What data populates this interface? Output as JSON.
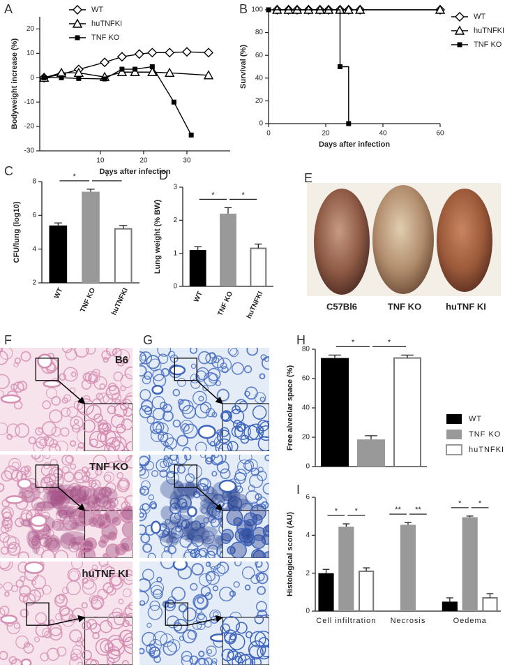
{
  "chart_data": [
    {
      "panel": "A",
      "type": "line",
      "xlabel": "Days after infection",
      "ylabel": "Bodyweight increase (%)",
      "xlim": [
        -4,
        40
      ],
      "xticks": [
        10,
        20,
        30
      ],
      "ylim": [
        -30,
        25
      ],
      "yticks": [
        -30,
        -20,
        -10,
        0,
        10,
        20
      ],
      "legend": "upper left",
      "series": [
        {
          "name": "WT",
          "marker": "diamond",
          "color": "#000000",
          "x": [
            -3,
            1,
            5,
            11,
            15,
            19,
            22,
            26,
            30,
            35
          ],
          "values": [
            0,
            1.4,
            3.4,
            6.3,
            8.6,
            9.7,
            10.3,
            10.3,
            10.6,
            10.3
          ]
        },
        {
          "name": "huTNFKI",
          "marker": "triangle",
          "color": "#000000",
          "x": [
            -3,
            1,
            5,
            11,
            15,
            18,
            22,
            26,
            35
          ],
          "values": [
            0,
            2,
            2,
            0.3,
            2.3,
            2.3,
            2.3,
            2,
            1
          ]
        },
        {
          "name": "TNF KO",
          "marker": "square",
          "color": "#000000",
          "x": [
            -3,
            1,
            5,
            11,
            15,
            18,
            22,
            27,
            31
          ],
          "values": [
            0,
            0,
            -0.3,
            -0.5,
            3.5,
            3.5,
            4.5,
            -10,
            -23.5
          ]
        }
      ]
    },
    {
      "panel": "B",
      "type": "line",
      "step": true,
      "xlabel": "Days after infection",
      "ylabel": "Survival (%)",
      "xlim": [
        0,
        60
      ],
      "xticks": [
        0,
        20,
        40,
        60
      ],
      "ylim": [
        0,
        100
      ],
      "yticks": [
        0,
        20,
        40,
        60,
        80,
        100
      ],
      "legend": "right",
      "series": [
        {
          "name": "WT",
          "marker": "diamond",
          "color": "#000000",
          "x": [
            3,
            7,
            10,
            14,
            18,
            21,
            25,
            28,
            32,
            60
          ],
          "values": [
            100,
            100,
            100,
            100,
            100,
            100,
            100,
            100,
            100,
            100
          ]
        },
        {
          "name": "huTNFKI",
          "marker": "triangle",
          "color": "#000000",
          "x": [
            3,
            7,
            10,
            14,
            18,
            21,
            25,
            28,
            32,
            60
          ],
          "values": [
            100,
            100,
            100,
            100,
            100,
            100,
            100,
            100,
            100,
            100
          ]
        },
        {
          "name": "TNF KO",
          "marker": "square",
          "color": "#000000",
          "x": [
            0,
            25,
            28
          ],
          "values": [
            100,
            50,
            0
          ]
        }
      ]
    },
    {
      "panel": "C",
      "type": "bar",
      "ylabel": "CFU/lung (log10)",
      "ylim": [
        2,
        8
      ],
      "yticks": [
        2,
        4,
        6,
        8
      ],
      "xtick_rotation": -65,
      "categories": [
        "WT",
        "TNF KO",
        "huTNFKI"
      ],
      "values": [
        5.4,
        7.4,
        5.2
      ],
      "errors": [
        0.15,
        0.15,
        0.2
      ],
      "colors": [
        "#000000",
        "#999999",
        "#ffffff"
      ],
      "annotations": [
        "*",
        "*"
      ]
    },
    {
      "panel": "D",
      "type": "bar",
      "ylabel": "Lung weight (% BW)",
      "ylim": [
        0,
        3
      ],
      "yticks": [
        0,
        1,
        2,
        3
      ],
      "xtick_rotation": -65,
      "categories": [
        "WT",
        "TNF KO",
        "huTNFKI"
      ],
      "values": [
        1.1,
        2.2,
        1.15
      ],
      "errors": [
        0.1,
        0.18,
        0.13
      ],
      "colors": [
        "#000000",
        "#999999",
        "#ffffff"
      ],
      "annotations": [
        "*",
        "*"
      ]
    },
    {
      "panel": "H",
      "type": "bar",
      "ylabel": "Free alveolar space (%)",
      "ylim": [
        0,
        80
      ],
      "yticks": [
        0,
        20,
        40,
        60,
        80
      ],
      "legend": "right",
      "categories": [
        null
      ],
      "series": [
        {
          "name": "WT",
          "color": "#000000",
          "values": [
            74
          ],
          "errors": [
            2
          ]
        },
        {
          "name": "TNF KO",
          "color": "#999999",
          "values": [
            18.5
          ],
          "errors": [
            2.5
          ]
        },
        {
          "name": "huTNFKI",
          "color": "#ffffff",
          "values": [
            74
          ],
          "errors": [
            2
          ]
        }
      ],
      "annotations": [
        [
          "*",
          "*"
        ]
      ]
    },
    {
      "panel": "I",
      "type": "bar",
      "ylabel": "Histological score (AU)",
      "ylim": [
        0,
        6
      ],
      "yticks": [
        0,
        2,
        4,
        6
      ],
      "categories": [
        "Cell infiltration",
        "Necrosis",
        "Oedema"
      ],
      "series": [
        {
          "name": "WT",
          "color": "#000000",
          "values": [
            2.0,
            null,
            0.5
          ],
          "errors": [
            0.2,
            null,
            0.2
          ]
        },
        {
          "name": "TNF KO",
          "color": "#999999",
          "values": [
            4.45,
            4.55,
            4.95
          ],
          "errors": [
            0.15,
            0.12,
            0.06
          ]
        },
        {
          "name": "huTNFKI",
          "color": "#ffffff",
          "values": [
            2.1,
            null,
            0.7
          ],
          "errors": [
            0.18,
            null,
            0.22
          ]
        }
      ],
      "annotations": [
        [
          "*",
          "*"
        ],
        [
          "**",
          "**"
        ],
        [
          "*",
          "*"
        ]
      ]
    }
  ],
  "images": {
    "E": {
      "panel": "E",
      "labels": [
        "C57Bl6",
        "TNF KO",
        "huTNF KI"
      ]
    },
    "F": {
      "panel": "F",
      "labels": [
        "B6",
        "TNF KO",
        "huTNF KI"
      ]
    },
    "G": {
      "panel": "G"
    }
  }
}
